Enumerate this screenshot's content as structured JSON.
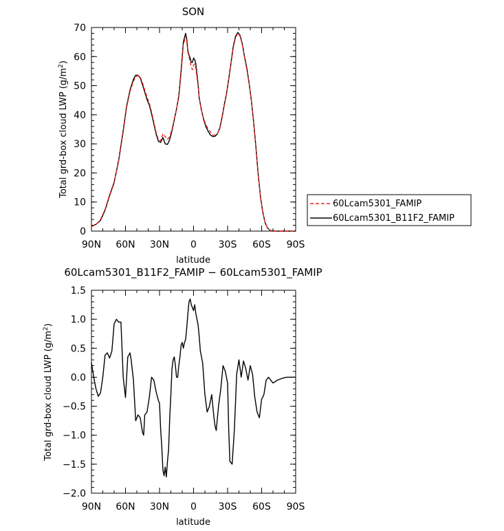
{
  "chart_data": [
    {
      "type": "line",
      "title": "SON",
      "xlabel": "latitude",
      "ylabel": "Total grd-box cloud LWP (g/m²)",
      "ylabel_main": "Total grd-box cloud LWP (g/m",
      "ylabel_sup": "2",
      "ylabel_close": ")",
      "x_ticks": [
        {
          "value": 90,
          "label": "90N"
        },
        {
          "value": 60,
          "label": "60N"
        },
        {
          "value": 30,
          "label": "30N"
        },
        {
          "value": 0,
          "label": "0"
        },
        {
          "value": -30,
          "label": "30S"
        },
        {
          "value": -60,
          "label": "60S"
        },
        {
          "value": -90,
          "label": "90S"
        }
      ],
      "xlim": [
        90,
        -90
      ],
      "ylim": [
        0,
        70
      ],
      "y_ticks": [
        0,
        10,
        20,
        30,
        40,
        50,
        60,
        70
      ],
      "legend_position": "right",
      "series": [
        {
          "name": "60Lcam5301_FAMIP",
          "color": "#e8231d",
          "dash": "dashed",
          "x": [
            90,
            86,
            82,
            78,
            74,
            70,
            66,
            62,
            59,
            56,
            53,
            51,
            49,
            47,
            45,
            43,
            41,
            39,
            37,
            35,
            33,
            31,
            29,
            27,
            25,
            23,
            21,
            19,
            17,
            15,
            13,
            11,
            9,
            7,
            6,
            5,
            4,
            3,
            2,
            1,
            0,
            -1,
            -2,
            -3,
            -4,
            -5,
            -7,
            -9,
            -11,
            -13,
            -15,
            -17,
            -19,
            -21,
            -23,
            -25,
            -27,
            -29,
            -31,
            -33,
            -35,
            -37,
            -39,
            -41,
            -43,
            -45,
            -47,
            -49,
            -51,
            -53,
            -55,
            -57,
            -59,
            -61,
            -63,
            -65,
            -67,
            -69,
            -71,
            -73,
            -75,
            -77,
            -80,
            -84,
            -88,
            -90
          ],
          "y": [
            1.5,
            2.3,
            4.0,
            7.5,
            12.5,
            17.0,
            24.0,
            34.0,
            42.5,
            48.0,
            51.5,
            53.0,
            53.5,
            53.0,
            51.0,
            48.5,
            46.0,
            44.0,
            41.0,
            37.5,
            34.0,
            31.5,
            31.0,
            33.5,
            32.5,
            31.5,
            32.5,
            35.0,
            38.5,
            42.0,
            46.0,
            54.0,
            64.0,
            67.0,
            65.0,
            61.5,
            60.0,
            58.0,
            56.5,
            55.5,
            57.0,
            57.5,
            56.0,
            53.0,
            50.0,
            45.5,
            41.5,
            38.5,
            36.5,
            35.0,
            34.0,
            33.0,
            33.0,
            33.5,
            35.0,
            38.5,
            43.0,
            47.0,
            52.0,
            57.5,
            63.0,
            66.5,
            68.0,
            67.0,
            64.0,
            59.5,
            55.5,
            50.5,
            44.5,
            37.0,
            28.5,
            19.0,
            11.5,
            6.5,
            3.0,
            1.2,
            0.4,
            0.1,
            0.0,
            0.0,
            0.0,
            0.0,
            0.0,
            0.0,
            0.0,
            0.0
          ]
        },
        {
          "name": "60Lcam5301_B11F2_FAMIP",
          "color": "#000000",
          "dash": "solid",
          "x": [
            90,
            86,
            82,
            78,
            74,
            70,
            66,
            62,
            59,
            56,
            53,
            51,
            49,
            47,
            45,
            43,
            41,
            39,
            37,
            35,
            33,
            31,
            29,
            27,
            25,
            23,
            21,
            19,
            17,
            15,
            13,
            11,
            9,
            7,
            6,
            5,
            4,
            3,
            2,
            1,
            0,
            -1,
            -2,
            -3,
            -4,
            -5,
            -7,
            -9,
            -11,
            -13,
            -15,
            -17,
            -19,
            -21,
            -23,
            -25,
            -27,
            -29,
            -31,
            -33,
            -35,
            -37,
            -39,
            -41,
            -43,
            -45,
            -47,
            -49,
            -51,
            -53,
            -55,
            -57,
            -59,
            -61,
            -63,
            -65,
            -67,
            -69,
            -71,
            -73,
            -75,
            -77,
            -80,
            -84,
            -88,
            -90
          ],
          "y": [
            1.7,
            2.3,
            3.7,
            7.2,
            12.2,
            16.7,
            24.4,
            34.6,
            43.0,
            48.5,
            52.2,
            53.6,
            53.6,
            52.7,
            50.3,
            47.8,
            45.2,
            43.3,
            40.3,
            36.8,
            33.4,
            30.9,
            30.5,
            32.2,
            30.0,
            29.8,
            31.5,
            34.5,
            38.2,
            42.0,
            46.5,
            55.0,
            65.0,
            68.0,
            66.0,
            62.0,
            60.5,
            59.5,
            58.0,
            58.0,
            59.5,
            59.0,
            57.5,
            54.0,
            50.5,
            45.8,
            41.5,
            38.2,
            35.8,
            34.2,
            33.0,
            32.5,
            32.6,
            33.4,
            35.3,
            38.9,
            43.3,
            47.2,
            52.3,
            57.8,
            63.5,
            67.0,
            68.3,
            67.3,
            64.3,
            59.8,
            56.0,
            50.8,
            44.8,
            37.3,
            28.8,
            19.4,
            11.8,
            6.6,
            3.0,
            1.2,
            0.4,
            0.1,
            0.0,
            0.0,
            0.0,
            0.0,
            0.0,
            0.0,
            0.0,
            0.0
          ]
        }
      ]
    },
    {
      "type": "line",
      "title": "60Lcam5301_B11F2_FAMIP − 60Lcam5301_FAMIP",
      "xlabel": "latitude",
      "ylabel": "Total grd-box cloud LWP (g/m²)",
      "ylabel_main": "Total grd-box cloud LWP (g/m",
      "ylabel_sup": "2",
      "ylabel_close": ")",
      "x_ticks": [
        {
          "value": 90,
          "label": "90N"
        },
        {
          "value": 60,
          "label": "60N"
        },
        {
          "value": 30,
          "label": "30N"
        },
        {
          "value": 0,
          "label": "0"
        },
        {
          "value": -30,
          "label": "30S"
        },
        {
          "value": -60,
          "label": "60S"
        },
        {
          "value": -90,
          "label": "90S"
        }
      ],
      "xlim": [
        90,
        -90
      ],
      "ylim": [
        -2.0,
        1.5
      ],
      "y_ticks": [
        {
          "value": 1.5,
          "label": "1.5"
        },
        {
          "value": 1.0,
          "label": "1.0"
        },
        {
          "value": 0.5,
          "label": "0.5"
        },
        {
          "value": 0.0,
          "label": "0.0"
        },
        {
          "value": -0.5,
          "label": "−0.5"
        },
        {
          "value": -1.0,
          "label": "−1.0"
        },
        {
          "value": -1.5,
          "label": "−1.5"
        },
        {
          "value": -2.0,
          "label": "−2.0"
        }
      ],
      "series": [
        {
          "color": "#000000",
          "x": [
            90,
            88,
            86,
            84,
            82,
            80,
            78,
            76,
            74,
            72,
            70,
            68,
            66,
            64,
            62,
            60,
            58,
            56,
            55,
            53,
            51,
            49,
            47,
            45,
            44,
            43,
            41,
            39,
            37,
            35,
            33,
            31,
            30,
            29,
            28,
            27,
            26,
            25,
            24,
            23,
            22,
            21,
            20,
            19,
            18,
            17,
            16,
            15,
            14,
            13,
            12,
            11,
            10,
            9,
            8,
            7,
            6,
            5,
            4,
            3,
            2,
            1,
            0,
            -1,
            -2,
            -3,
            -4,
            -5,
            -6,
            -8,
            -10,
            -12,
            -14,
            -16,
            -17,
            -18,
            -19,
            -20,
            -22,
            -24,
            -26,
            -28,
            -30,
            -31,
            -32,
            -34,
            -36,
            -38,
            -40,
            -42,
            -44,
            -46,
            -48,
            -50,
            -52,
            -54,
            -56,
            -58,
            -60,
            -62,
            -64,
            -66,
            -70,
            -74,
            -78,
            -82,
            -86,
            -90
          ],
          "y": [
            0.25,
            0.0,
            -0.2,
            -0.33,
            -0.27,
            0.0,
            0.38,
            0.42,
            0.33,
            0.45,
            0.92,
            1.0,
            0.95,
            0.95,
            0.0,
            -0.35,
            0.35,
            0.42,
            0.3,
            -0.05,
            -0.75,
            -0.65,
            -0.7,
            -0.95,
            -1.0,
            -0.65,
            -0.6,
            -0.35,
            0.0,
            -0.05,
            -0.25,
            -0.4,
            -0.45,
            -0.9,
            -1.2,
            -1.6,
            -1.7,
            -1.55,
            -1.72,
            -1.45,
            -1.25,
            -0.7,
            -0.3,
            0.15,
            0.3,
            0.35,
            0.2,
            0.0,
            0.0,
            0.2,
            0.35,
            0.55,
            0.6,
            0.5,
            0.6,
            0.65,
            0.85,
            1.1,
            1.3,
            1.35,
            1.25,
            1.2,
            1.15,
            1.25,
            1.1,
            1.0,
            0.9,
            0.7,
            0.45,
            0.25,
            -0.3,
            -0.6,
            -0.5,
            -0.3,
            -0.5,
            -0.7,
            -0.85,
            -0.92,
            -0.5,
            -0.2,
            0.2,
            0.1,
            -0.1,
            -0.9,
            -1.45,
            -1.5,
            -0.9,
            0.05,
            0.3,
            0.0,
            0.28,
            0.15,
            -0.05,
            0.2,
            0.05,
            -0.35,
            -0.6,
            -0.7,
            -0.38,
            -0.3,
            -0.05,
            0.0,
            -0.1,
            -0.05,
            -0.02,
            0.0,
            0.0,
            0.0
          ]
        }
      ]
    }
  ]
}
